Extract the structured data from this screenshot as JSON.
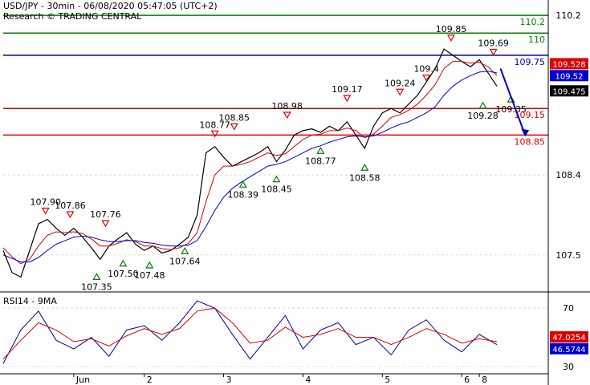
{
  "header": {
    "line1": "USD/JPY - 30min - 06/08/2020 05:47:05 (UTC+2)",
    "line2": "Research © TRADING CENTRAL"
  },
  "colors": {
    "price": "#000000",
    "ma_fast": "#dd0000",
    "ma_slow": "#0000cc",
    "resistance": "#dd0000",
    "target": "#008000",
    "pivot": "#000099",
    "up_marker": "#008000",
    "down_marker": "#dd0000",
    "rsi": "#000099",
    "rsi_ma": "#dd0000"
  },
  "chart_data": [
    {
      "type": "line",
      "title": "USD/JPY - 30min - 06/08/2020 05:47:05 (UTC+2)",
      "ylim": [
        107.1,
        110.3
      ],
      "y_ticks": [
        107.5,
        108.4,
        110.2
      ],
      "x_ticks": [
        {
          "label": "Jun",
          "x": 40
        },
        {
          "label": "2",
          "x": 80
        },
        {
          "label": "3",
          "x": 125
        },
        {
          "label": "4",
          "x": 170
        },
        {
          "label": "5",
          "x": 215
        },
        {
          "label": "6",
          "x": 260
        },
        {
          "label": "8",
          "x": 270
        }
      ],
      "x": [
        0,
        5,
        10,
        15,
        20,
        25,
        30,
        35,
        40,
        45,
        50,
        55,
        60,
        65,
        70,
        75,
        80,
        85,
        90,
        95,
        100,
        105,
        110,
        115,
        120,
        125,
        130,
        135,
        140,
        145,
        150,
        155,
        160,
        165,
        170,
        175,
        180,
        185,
        190,
        195,
        200,
        205,
        210,
        215,
        220,
        225,
        230,
        235,
        240,
        245,
        250,
        255,
        260,
        265,
        270,
        275,
        280
      ],
      "series": [
        {
          "values": [
            107.55,
            107.3,
            107.25,
            107.55,
            107.85,
            107.9,
            107.8,
            107.72,
            107.8,
            107.7,
            107.58,
            107.45,
            107.6,
            107.68,
            107.75,
            107.62,
            107.55,
            107.6,
            107.52,
            107.55,
            107.62,
            107.7,
            107.95,
            108.65,
            108.72,
            108.6,
            108.5,
            108.55,
            108.6,
            108.65,
            108.72,
            108.55,
            108.68,
            108.85,
            108.9,
            108.92,
            108.88,
            108.95,
            108.9,
            109.0,
            108.85,
            108.7,
            108.95,
            109.1,
            109.15,
            109.1,
            109.2,
            109.3,
            109.45,
            109.6,
            109.82,
            109.75,
            109.68,
            109.62,
            109.7,
            109.55,
            109.4
          ]
        },
        {
          "values": [
            107.58,
            107.48,
            107.4,
            107.45,
            107.6,
            107.72,
            107.76,
            107.75,
            107.76,
            107.74,
            107.68,
            107.6,
            107.6,
            107.63,
            107.67,
            107.65,
            107.6,
            107.6,
            107.57,
            107.56,
            107.58,
            107.63,
            107.75,
            108.1,
            108.4,
            108.5,
            108.5,
            108.52,
            108.55,
            108.6,
            108.65,
            108.62,
            108.64,
            108.72,
            108.8,
            108.85,
            108.86,
            108.9,
            108.9,
            108.93,
            108.9,
            108.82,
            108.86,
            108.95,
            109.05,
            109.08,
            109.13,
            109.2,
            109.3,
            109.42,
            109.6,
            109.68,
            109.68,
            109.66,
            109.67,
            109.62,
            109.52
          ]
        },
        {
          "values": [
            107.5,
            107.46,
            107.42,
            107.42,
            107.47,
            107.55,
            107.62,
            107.66,
            107.7,
            107.71,
            107.7,
            107.67,
            107.65,
            107.65,
            107.66,
            107.66,
            107.64,
            107.63,
            107.61,
            107.6,
            107.6,
            107.61,
            107.66,
            107.82,
            108.0,
            108.15,
            108.25,
            108.32,
            108.38,
            108.44,
            108.5,
            108.52,
            108.55,
            108.6,
            108.65,
            108.7,
            108.73,
            108.77,
            108.8,
            108.83,
            108.84,
            108.83,
            108.84,
            108.88,
            108.93,
            108.97,
            109.0,
            109.05,
            109.1,
            109.17,
            109.3,
            109.4,
            109.47,
            109.52,
            109.56,
            109.57,
            109.55
          ]
        }
      ],
      "levels": [
        {
          "label": "110.2",
          "value": 110.2
        },
        {
          "label": "110",
          "value": 110.0
        },
        {
          "label": "109.75",
          "value": 109.75
        },
        {
          "label": "109.15",
          "value": 109.15
        },
        {
          "label": "108.85",
          "value": 108.85
        }
      ],
      "price_tags": [
        {
          "label": "109.528",
          "value": 109.528
        },
        {
          "label": "109.52",
          "value": 109.52
        },
        {
          "label": "109.475",
          "value": 109.475
        }
      ],
      "peaks": [
        {
          "label": "107.90",
          "value": 107.9,
          "x": 24
        },
        {
          "label": "107.86",
          "value": 107.86,
          "x": 38
        },
        {
          "label": "107.76",
          "value": 107.76,
          "x": 58
        },
        {
          "label": "108.77",
          "value": 108.77,
          "x": 120
        },
        {
          "label": "108.85",
          "value": 108.85,
          "x": 131
        },
        {
          "label": "108.98",
          "value": 108.98,
          "x": 161
        },
        {
          "label": "109.17",
          "value": 109.17,
          "x": 195
        },
        {
          "label": "109.24",
          "value": 109.24,
          "x": 225
        },
        {
          "label": "109.4",
          "value": 109.4,
          "x": 240
        },
        {
          "label": "109.85",
          "value": 109.85,
          "x": 254
        },
        {
          "label": "109.69",
          "value": 109.69,
          "x": 278
        }
      ],
      "troughs": [
        {
          "label": "107.35",
          "value": 107.35,
          "x": 53
        },
        {
          "label": "107.50",
          "value": 107.5,
          "x": 68
        },
        {
          "label": "107.48",
          "value": 107.48,
          "x": 83
        },
        {
          "label": "107.64",
          "value": 107.64,
          "x": 103
        },
        {
          "label": "108.39",
          "value": 108.39,
          "x": 136
        },
        {
          "label": "108.45",
          "value": 108.45,
          "x": 155
        },
        {
          "label": "108.77",
          "value": 108.77,
          "x": 180
        },
        {
          "label": "108.58",
          "value": 108.58,
          "x": 205
        },
        {
          "label": "109.28",
          "value": 109.28,
          "x": 272
        },
        {
          "label": "109.35",
          "value": 109.35,
          "x": 288
        }
      ],
      "forecast": [
        {
          "x": 282,
          "value": 109.6
        },
        {
          "x": 296,
          "value": 108.85
        }
      ]
    },
    {
      "type": "line",
      "title": "RSI14 - 9MA",
      "ylim": [
        25,
        80
      ],
      "y_ticks": [
        30,
        70
      ],
      "x": [
        0,
        10,
        20,
        30,
        40,
        50,
        60,
        70,
        80,
        90,
        100,
        110,
        120,
        130,
        140,
        150,
        160,
        170,
        180,
        190,
        200,
        210,
        220,
        230,
        240,
        250,
        260,
        270,
        280
      ],
      "series": [
        {
          "values": [
            32,
            55,
            68,
            48,
            42,
            50,
            37,
            55,
            58,
            48,
            60,
            75,
            70,
            52,
            35,
            50,
            65,
            42,
            55,
            60,
            45,
            50,
            38,
            55,
            62,
            48,
            40,
            52,
            45
          ]
        },
        {
          "values": [
            35,
            48,
            60,
            55,
            47,
            49,
            44,
            51,
            56,
            52,
            56,
            68,
            70,
            60,
            46,
            48,
            57,
            50,
            52,
            56,
            50,
            50,
            45,
            50,
            56,
            52,
            46,
            49,
            47
          ]
        }
      ],
      "price_tags": [
        {
          "label": "47.0254",
          "value": 47.0254
        },
        {
          "label": "46.5744",
          "value": 46.5744
        }
      ]
    }
  ]
}
